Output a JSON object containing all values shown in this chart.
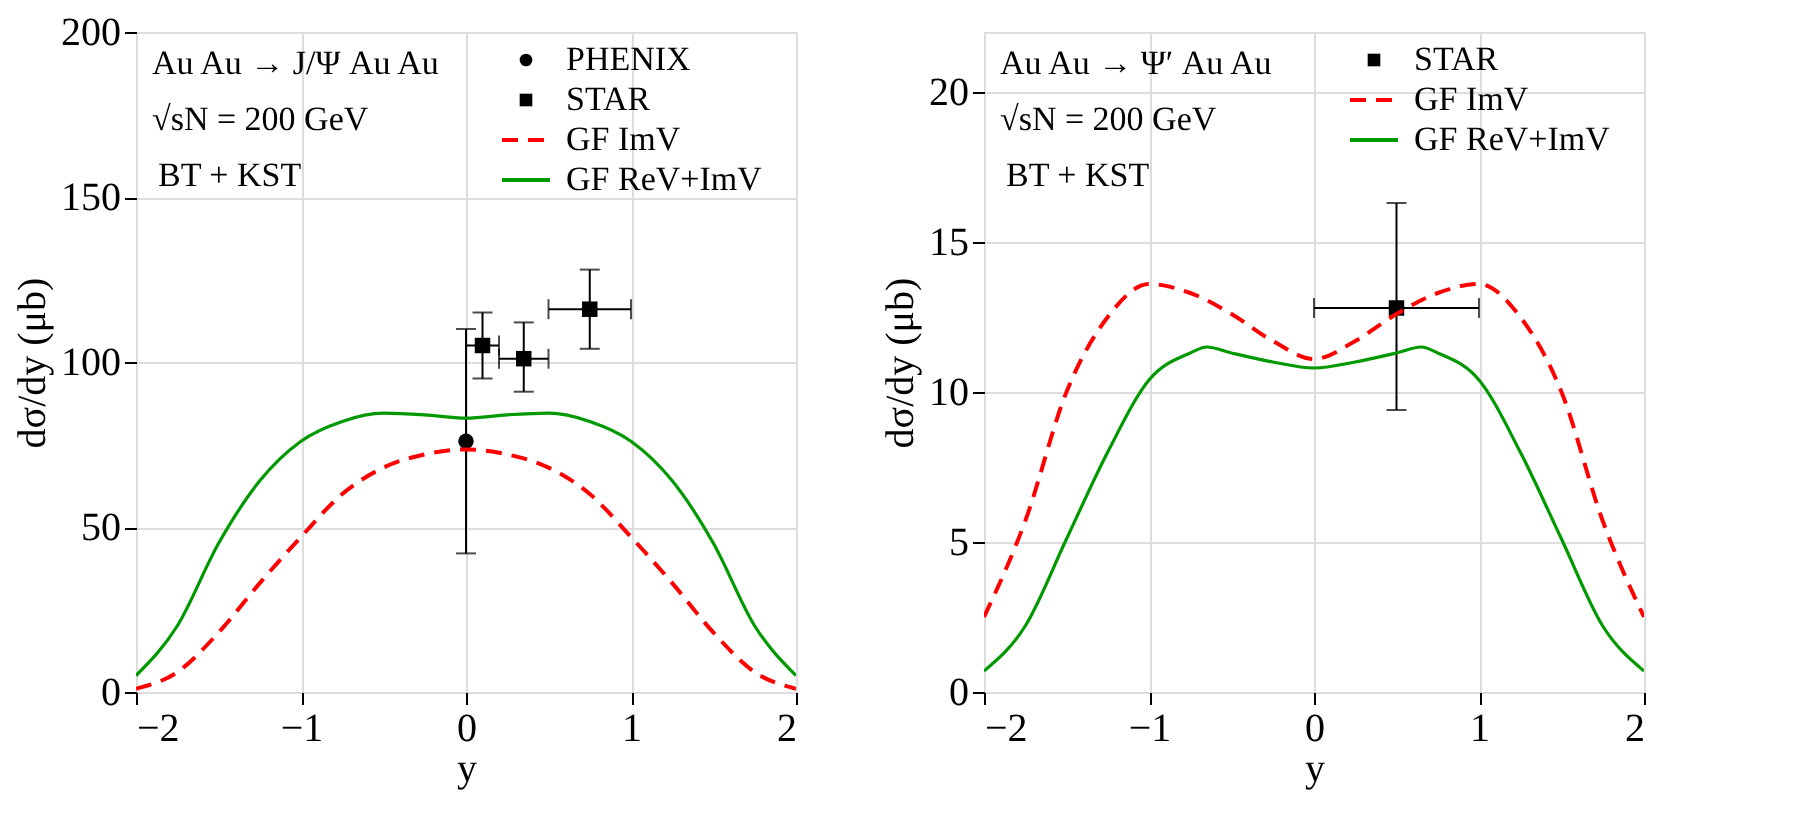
{
  "chart_data": [
    {
      "type": "line",
      "xlabel": "y",
      "ylabel": "dσ/dy (μb)",
      "xlim": [
        -2,
        2
      ],
      "xticks": [
        -2,
        -1,
        0,
        1,
        2
      ],
      "ylim": [
        0,
        200
      ],
      "yticks": [
        0,
        50,
        100,
        150,
        200
      ],
      "grid": true,
      "legend": "top right",
      "annotations": [
        "Au Au  → J/Ψ Au Au",
        "√sN = 200 GeV",
        "BT + KST"
      ],
      "series": [
        {
          "name": "PHENIX",
          "type": "scatter",
          "marker": "circle",
          "color": "#000000",
          "x": [
            0
          ],
          "values": [
            76
          ],
          "errors": [
            [
              42,
              110
            ]
          ]
        },
        {
          "name": "STAR",
          "type": "scatter",
          "marker": "square",
          "color": "#000000",
          "x": [
            0.1,
            0.35,
            0.75
          ],
          "values": [
            105,
            101,
            116
          ],
          "errors": [
            [
              95,
              115
            ],
            [
              91,
              112
            ],
            [
              104,
              128
            ]
          ],
          "xerrors": [
            [
              0,
              0.2
            ],
            [
              0.2,
              0.5
            ],
            [
              0.5,
              1.0
            ]
          ]
        },
        {
          "name": "GF ImV",
          "line_style": "dashed",
          "color": "#ff0000",
          "x": [
            -2,
            -1.75,
            -1.5,
            -1.25,
            -1,
            -0.75,
            -0.5,
            -0.25,
            0,
            0.25,
            0.5,
            0.75,
            1,
            1.25,
            1.5,
            1.75,
            2
          ],
          "values": [
            1,
            6,
            18,
            33,
            47,
            60,
            68,
            72,
            73.5,
            72,
            68,
            60,
            47,
            33,
            18,
            6,
            1
          ]
        },
        {
          "name": "GF ReV+ImV",
          "line_style": "solid",
          "color": "#009900",
          "x": [
            -2,
            -1.75,
            -1.5,
            -1.25,
            -1,
            -0.75,
            -0.5,
            -0.25,
            0,
            0.25,
            0.5,
            0.75,
            1,
            1.25,
            1.5,
            1.75,
            2
          ],
          "values": [
            5,
            20,
            45,
            64,
            76,
            82,
            84.5,
            84,
            83,
            84,
            84.5,
            82,
            76,
            64,
            45,
            20,
            5
          ]
        }
      ]
    },
    {
      "type": "line",
      "xlabel": "y",
      "ylabel": "dσ/dy (μb)",
      "xlim": [
        -2,
        2
      ],
      "xticks": [
        -2,
        -1,
        0,
        1,
        2
      ],
      "ylim": [
        0,
        22
      ],
      "yticks": [
        0,
        5,
        10,
        15,
        20
      ],
      "grid": true,
      "legend": "top right",
      "annotations": [
        "Au Au  → Ψ′ Au Au",
        "√sN = 200 GeV",
        "BT + KST"
      ],
      "series": [
        {
          "name": "STAR",
          "type": "scatter",
          "marker": "square",
          "color": "#000000",
          "x": [
            0.5
          ],
          "values": [
            12.8
          ],
          "errors": [
            [
              9.4,
              16.3
            ]
          ],
          "xerrors": [
            [
              0,
              1
            ]
          ]
        },
        {
          "name": "GF ImV",
          "line_style": "dashed",
          "color": "#ff0000",
          "x": [
            -2,
            -1.75,
            -1.5,
            -1.25,
            -1,
            -0.75,
            -0.5,
            -0.25,
            0,
            0.25,
            0.5,
            0.75,
            1,
            1.25,
            1.5,
            1.75,
            2
          ],
          "values": [
            2.5,
            5.7,
            10.0,
            12.5,
            13.6,
            13.3,
            12.6,
            11.7,
            11.1,
            11.7,
            12.6,
            13.3,
            13.6,
            12.5,
            10.0,
            5.7,
            2.5
          ]
        },
        {
          "name": "GF ReV+ImV",
          "line_style": "solid",
          "color": "#009900",
          "x": [
            -2,
            -1.75,
            -1.5,
            -1.25,
            -1,
            -0.75,
            -0.65,
            -0.5,
            -0.25,
            0,
            0.25,
            0.5,
            0.65,
            0.75,
            1,
            1.25,
            1.5,
            1.75,
            2
          ],
          "values": [
            0.7,
            2.2,
            5.1,
            8.0,
            10.4,
            11.3,
            11.5,
            11.3,
            11.0,
            10.8,
            11.0,
            11.3,
            11.5,
            11.3,
            10.4,
            8.0,
            5.1,
            2.2,
            0.7
          ]
        }
      ]
    }
  ]
}
